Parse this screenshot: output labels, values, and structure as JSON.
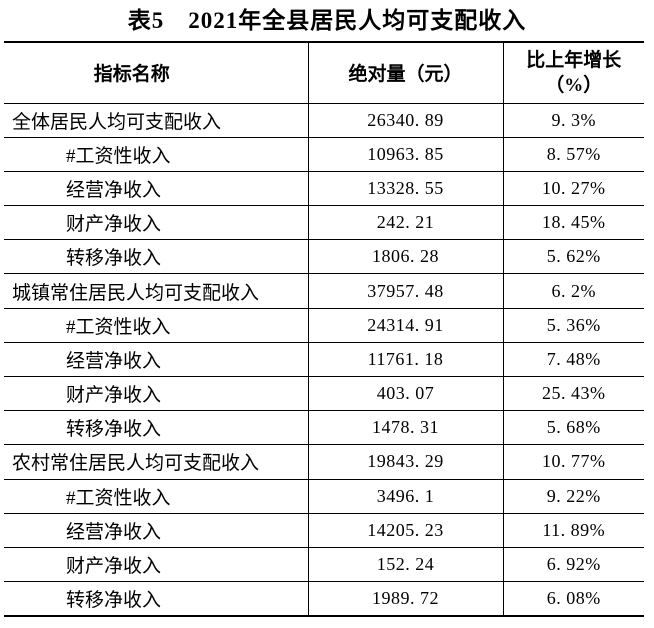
{
  "page": {
    "background_color": "#ffffff",
    "ink_color": "#000000",
    "border_color": "#000000"
  },
  "title": "表5　2021年全县居民人均可支配收入",
  "table": {
    "columns": [
      {
        "label": "指标名称"
      },
      {
        "label": "绝对量（元）"
      },
      {
        "label": "比上年增长",
        "label_line2": "（%）"
      }
    ],
    "rows": [
      {
        "indicator": "全体居民人均可支配收入",
        "absolute": "26340.89",
        "growth": "9.3%",
        "level": "main"
      },
      {
        "indicator": "#工资性收入",
        "absolute": "10963.85",
        "growth": "8.57%",
        "level": "sub"
      },
      {
        "indicator": "经营净收入",
        "absolute": "13328.55",
        "growth": "10.27%",
        "level": "sub"
      },
      {
        "indicator": "财产净收入",
        "absolute": "242.21",
        "growth": "18.45%",
        "level": "sub"
      },
      {
        "indicator": "转移净收入",
        "absolute": "1806.28",
        "growth": "5.62%",
        "level": "sub"
      },
      {
        "indicator": "城镇常住居民人均可支配收入",
        "absolute": "37957.48",
        "growth": "6.2%",
        "level": "main"
      },
      {
        "indicator": "#工资性收入",
        "absolute": "24314.91",
        "growth": "5.36%",
        "level": "sub"
      },
      {
        "indicator": "经营净收入",
        "absolute": "11761.18",
        "growth": "7.48%",
        "level": "sub"
      },
      {
        "indicator": "财产净收入",
        "absolute": "403.07",
        "growth": "25.43%",
        "level": "sub"
      },
      {
        "indicator": "转移净收入",
        "absolute": "1478.31",
        "growth": "5.68%",
        "level": "sub"
      },
      {
        "indicator": "农村常住居民人均可支配收入",
        "absolute": "19843.29",
        "growth": "10.77%",
        "level": "main"
      },
      {
        "indicator": "#工资性收入",
        "absolute": "3496.1",
        "growth": "9.22%",
        "level": "sub"
      },
      {
        "indicator": "经营净收入",
        "absolute": "14205.23",
        "growth": "11.89%",
        "level": "sub"
      },
      {
        "indicator": "财产净收入",
        "absolute": "152.24",
        "growth": "6.92%",
        "level": "sub"
      },
      {
        "indicator": "转移净收入",
        "absolute": "1989.72",
        "growth": "6.08%",
        "level": "sub"
      }
    ]
  }
}
